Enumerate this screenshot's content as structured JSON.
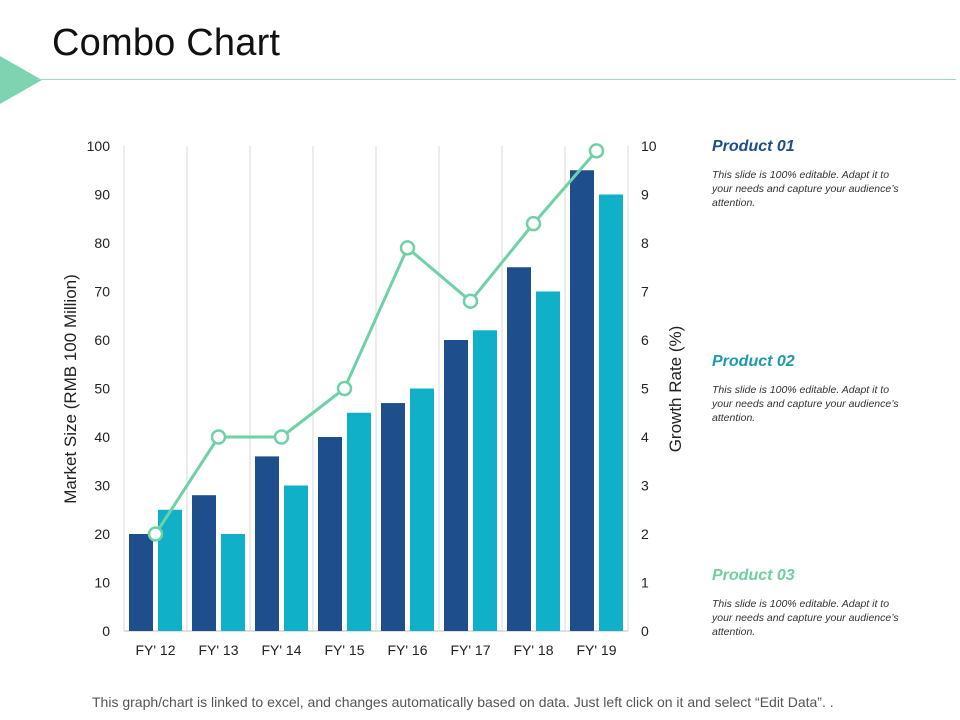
{
  "page": {
    "title": "Combo Chart",
    "footer": "This graph/chart is linked to excel, and changes automatically based on data. Just left click on it and select “Edit Data”. ."
  },
  "colors": {
    "accent": "#7fd3b0",
    "rule": "#9fd8c2",
    "series1": "#1f4e8c",
    "series2": "#0fb0c8",
    "line": "#6fd1a6",
    "product1_title": "#1f4e8c",
    "product2_title": "#1a9bb0",
    "product3_title": "#6fcf9f"
  },
  "chart_data": {
    "type": "bar+line",
    "categories": [
      "FY' 12",
      "FY' 13",
      "FY' 14",
      "FY' 15",
      "FY' 16",
      "FY' 17",
      "FY' 18",
      "FY' 19"
    ],
    "series": [
      {
        "name": "Product 01",
        "kind": "bar",
        "axis": "left",
        "values": [
          20,
          28,
          36,
          40,
          47,
          60,
          75,
          95
        ]
      },
      {
        "name": "Product 02",
        "kind": "bar",
        "axis": "left",
        "values": [
          25,
          20,
          30,
          45,
          50,
          62,
          70,
          90
        ]
      },
      {
        "name": "Product 03",
        "kind": "line",
        "axis": "right",
        "values": [
          2,
          4,
          4,
          5,
          7.9,
          6.8,
          8.4,
          9.9
        ]
      }
    ],
    "ylabel": "Market Size (RMB 100 Million)",
    "y2label": "Growth Rate (%)",
    "ylim": [
      0,
      100
    ],
    "y2lim": [
      0,
      10
    ],
    "yticks": [
      0,
      10,
      20,
      30,
      40,
      50,
      60,
      70,
      80,
      90,
      100
    ],
    "y2ticks": [
      0,
      1,
      2,
      3,
      4,
      5,
      6,
      7,
      8,
      9,
      10
    ],
    "grid": "vertical"
  },
  "products": [
    {
      "title": "Product 01",
      "text": "This slide is 100% editable. Adapt it to your needs and capture your audience’s attention."
    },
    {
      "title": "Product 02",
      "text": "This slide is 100% editable. Adapt it to your needs and capture your audience’s attention."
    },
    {
      "title": "Product 03",
      "text": "This slide is 100% editable. Adapt it to your needs and capture your audience’s attention."
    }
  ]
}
